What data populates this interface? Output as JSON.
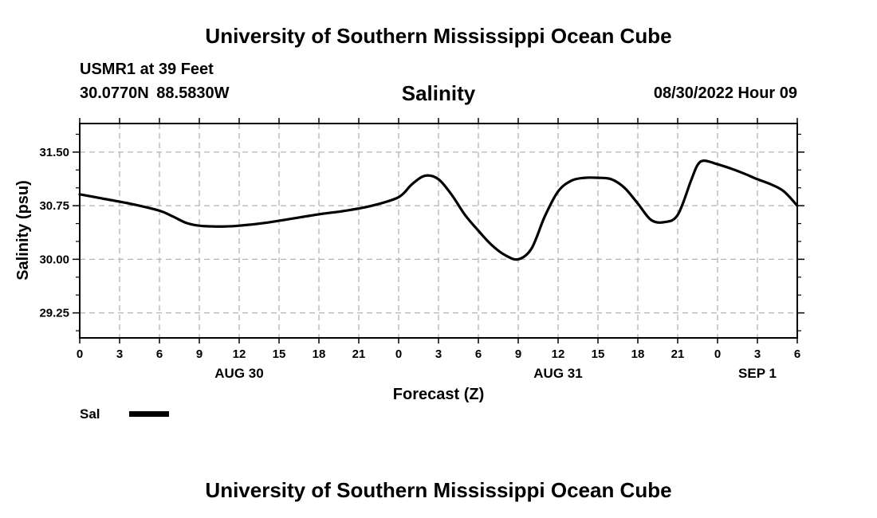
{
  "header": {
    "main_title": "University of Southern Mississippi Ocean Cube",
    "station_name": "USMR1 at 39 Feet",
    "station_coords": "30.0770N  88.5830W",
    "run_time": "08/30/2022 Hour 09"
  },
  "footer": {
    "title": "University of Southern Mississippi Ocean Cube"
  },
  "legend": {
    "label": "Sal",
    "color": "#000000"
  },
  "chart_data": {
    "type": "line",
    "title": "Salinity",
    "xlabel": "Forecast (Z)",
    "ylabel": "Salinity (psu)",
    "xlim": [
      0,
      54
    ],
    "ylim": [
      28.9,
      31.9
    ],
    "x_ticks": [
      0,
      3,
      6,
      9,
      12,
      15,
      18,
      21,
      24,
      27,
      30,
      33,
      36,
      39,
      42,
      45,
      48,
      51,
      54
    ],
    "x_tick_labels": [
      "0",
      "3",
      "6",
      "9",
      "12",
      "15",
      "18",
      "21",
      "0",
      "3",
      "6",
      "9",
      "12",
      "15",
      "18",
      "21",
      "0",
      "3",
      "6"
    ],
    "date_labels": [
      {
        "x": 12,
        "text": "AUG 30"
      },
      {
        "x": 36,
        "text": "AUG 31"
      },
      {
        "x": 51,
        "text": "SEP 1"
      }
    ],
    "y_ticks": [
      29.25,
      30.0,
      30.75,
      31.5
    ],
    "y_tick_labels": [
      "29.25",
      "30.00",
      "30.75",
      "31.50"
    ],
    "y_minor_ticks": [
      29.0,
      29.5,
      29.75,
      30.25,
      30.5,
      31.0,
      31.25,
      31.75
    ],
    "grid": true,
    "series": [
      {
        "name": "Sal",
        "x": [
          0,
          2,
          4,
          6,
          7,
          8,
          9,
          10,
          11,
          12,
          14,
          16,
          18,
          20,
          22,
          24,
          25,
          26,
          27,
          28,
          29,
          30,
          31,
          32,
          33,
          34,
          35,
          36,
          37,
          38,
          39,
          40,
          41,
          42,
          43,
          44,
          45,
          46,
          46.5,
          47,
          48,
          49,
          50,
          51,
          52,
          53,
          54
        ],
        "y": [
          30.91,
          30.84,
          30.77,
          30.68,
          30.6,
          30.51,
          30.47,
          30.46,
          30.46,
          30.47,
          30.51,
          30.57,
          30.63,
          30.68,
          30.75,
          30.87,
          31.05,
          31.17,
          31.12,
          30.9,
          30.62,
          30.4,
          30.2,
          30.06,
          30.0,
          30.15,
          30.6,
          30.95,
          31.1,
          31.14,
          31.14,
          31.12,
          31.0,
          30.78,
          30.55,
          30.52,
          30.62,
          31.1,
          31.32,
          31.38,
          31.33,
          31.27,
          31.2,
          31.12,
          31.05,
          30.95,
          30.75
        ]
      }
    ]
  }
}
